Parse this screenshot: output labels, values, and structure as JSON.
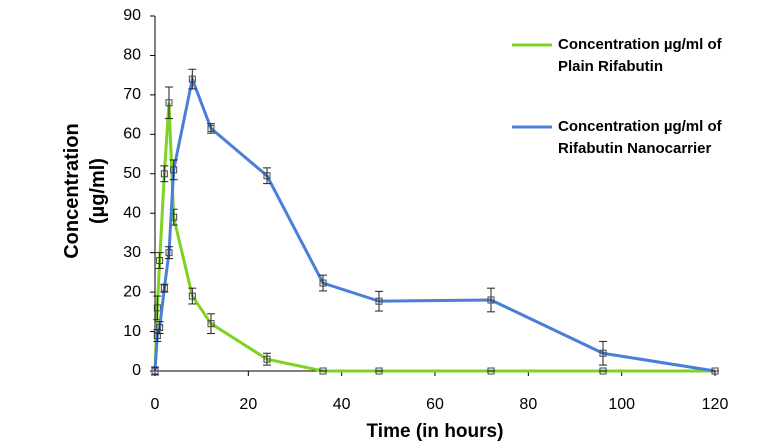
{
  "chart_data": {
    "type": "line",
    "x_label": "Time (in hours)",
    "y_label": "Concentration (µg/ml)",
    "x": [
      0,
      0.5,
      1,
      2,
      3,
      4,
      8,
      12,
      24,
      36,
      48,
      72,
      96,
      120
    ],
    "series": [
      {
        "name": "Concentration µg/ml of Plain Rifabutin",
        "color": "#7ed321",
        "values": [
          0,
          16,
          28,
          50,
          68,
          39,
          19,
          12,
          3,
          0,
          0,
          0,
          0,
          0
        ],
        "errors": [
          0,
          3,
          2,
          2,
          4,
          2,
          2,
          2.5,
          1.5,
          0,
          0,
          0,
          0,
          0
        ]
      },
      {
        "name": "Concentration µg/ml of Rifabutin Nanocarrier",
        "color": "#4a7fd9",
        "values": [
          0,
          9,
          11,
          21,
          30,
          51,
          74,
          61.5,
          49.5,
          22.3,
          17.7,
          18,
          4.5,
          0
        ],
        "errors": [
          1,
          1.5,
          1.5,
          1,
          1.5,
          2.5,
          2.5,
          1.2,
          2,
          2,
          2.5,
          3,
          3,
          0
        ]
      }
    ],
    "xlim": [
      0,
      120
    ],
    "xticks": [
      0,
      20,
      40,
      60,
      80,
      100,
      120
    ],
    "ylim": [
      0,
      90
    ],
    "yticks": [
      0,
      10,
      20,
      30,
      40,
      50,
      60,
      70,
      80,
      90
    ],
    "grid": false,
    "legend": "upper right"
  }
}
